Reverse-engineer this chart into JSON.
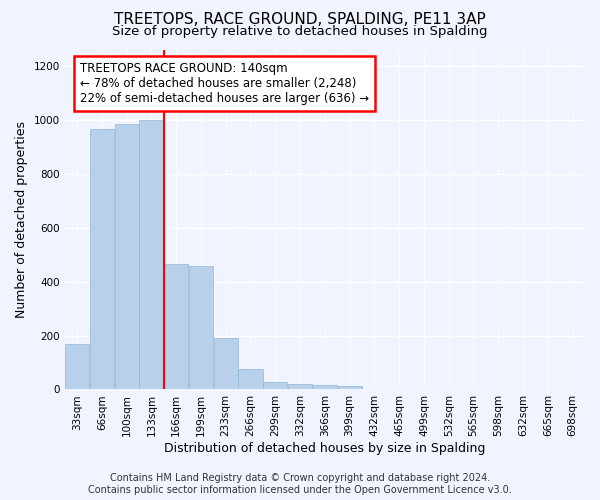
{
  "title": "TREETOPS, RACE GROUND, SPALDING, PE11 3AP",
  "subtitle": "Size of property relative to detached houses in Spalding",
  "xlabel": "Distribution of detached houses by size in Spalding",
  "ylabel": "Number of detached properties",
  "categories": [
    "33sqm",
    "66sqm",
    "100sqm",
    "133sqm",
    "166sqm",
    "199sqm",
    "233sqm",
    "266sqm",
    "299sqm",
    "332sqm",
    "366sqm",
    "399sqm",
    "432sqm",
    "465sqm",
    "499sqm",
    "532sqm",
    "565sqm",
    "598sqm",
    "632sqm",
    "665sqm",
    "698sqm"
  ],
  "values": [
    170,
    965,
    985,
    1000,
    465,
    460,
    190,
    75,
    27,
    20,
    15,
    12,
    0,
    0,
    0,
    0,
    0,
    0,
    0,
    0,
    0
  ],
  "bar_color": "#b8d0ea",
  "bar_edge_color": "#8db8d8",
  "vline_x": 3.5,
  "vline_color": "red",
  "annotation_title": "TREETOPS RACE GROUND: 140sqm",
  "annotation_line1": "← 78% of detached houses are smaller (2,248)",
  "annotation_line2": "22% of semi-detached houses are larger (636) →",
  "annotation_box_color": "red",
  "annotation_bg": "white",
  "ylim": [
    0,
    1260
  ],
  "yticks": [
    0,
    200,
    400,
    600,
    800,
    1000,
    1200
  ],
  "footer_line1": "Contains HM Land Registry data © Crown copyright and database right 2024.",
  "footer_line2": "Contains public sector information licensed under the Open Government Licence v3.0.",
  "bg_color": "#f0f4ff",
  "grid_color": "#d0d8e8",
  "title_fontsize": 11,
  "subtitle_fontsize": 9.5,
  "axis_label_fontsize": 9,
  "tick_fontsize": 7.5,
  "annotation_fontsize": 8.5,
  "footer_fontsize": 7
}
